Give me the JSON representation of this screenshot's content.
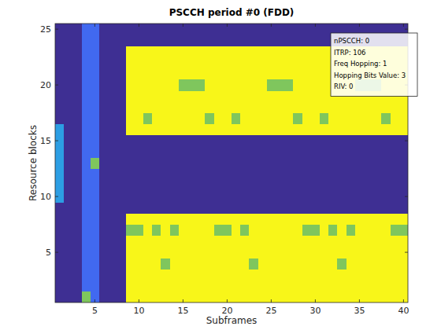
{
  "chart_data": {
    "type": "heatmap",
    "title": "PSCCH period #0 (FDD)",
    "x_label": "Subframes",
    "y_label": "Resource blocks",
    "annotations": [
      "nPSCCH: 0",
      "ITRP: 106",
      "Freq Hopping: 1",
      "Hopping Bits Value: 3",
      "RIV: 0"
    ],
    "xlim": [
      0.5,
      40.5
    ],
    "ylim": [
      0.5,
      25.5
    ],
    "xticks": [
      5,
      10,
      15,
      20,
      25,
      30,
      35,
      40
    ],
    "yticks": [
      5,
      10,
      15,
      20,
      25
    ],
    "x": [
      1,
      2,
      3,
      4,
      5,
      6,
      7,
      8,
      9,
      10,
      11,
      12,
      13,
      14,
      15,
      16,
      17,
      18,
      19,
      20,
      21,
      22,
      23,
      24,
      25,
      26,
      27,
      28,
      29,
      30,
      31,
      32,
      33,
      34,
      35,
      36,
      37,
      38,
      39,
      40
    ],
    "y": [
      1,
      2,
      3,
      4,
      5,
      6,
      7,
      8,
      9,
      10,
      11,
      12,
      13,
      14,
      15,
      16,
      17,
      18,
      19,
      20,
      21,
      22,
      23,
      24,
      25
    ],
    "colors": [
      "#3e2f93",
      "#4169f0",
      "#2c9ee4",
      "#7fc65d",
      "#f8f619"
    ],
    "cells": [
      [
        0,
        0,
        0,
        3,
        1,
        0,
        0,
        0,
        4,
        4,
        4,
        4,
        4,
        4,
        4,
        4,
        4,
        4,
        4,
        4,
        4,
        4,
        4,
        4,
        4,
        4,
        4,
        4,
        4,
        4,
        4,
        4,
        4,
        4,
        4,
        4,
        4,
        4,
        4,
        4
      ],
      [
        0,
        0,
        0,
        1,
        1,
        0,
        0,
        0,
        4,
        4,
        4,
        4,
        4,
        4,
        4,
        4,
        4,
        4,
        4,
        4,
        4,
        4,
        4,
        4,
        4,
        4,
        4,
        4,
        4,
        4,
        4,
        4,
        4,
        4,
        4,
        4,
        4,
        4,
        4,
        4
      ],
      [
        0,
        0,
        0,
        1,
        1,
        0,
        0,
        0,
        4,
        4,
        4,
        4,
        4,
        4,
        4,
        4,
        4,
        4,
        4,
        4,
        4,
        4,
        4,
        4,
        4,
        4,
        4,
        4,
        4,
        4,
        4,
        4,
        4,
        4,
        4,
        4,
        4,
        4,
        4,
        4
      ],
      [
        0,
        0,
        0,
        1,
        1,
        0,
        0,
        0,
        4,
        4,
        4,
        4,
        3,
        4,
        4,
        4,
        4,
        4,
        4,
        4,
        4,
        4,
        3,
        4,
        4,
        4,
        4,
        4,
        4,
        4,
        4,
        4,
        3,
        4,
        4,
        4,
        4,
        4,
        4,
        4
      ],
      [
        0,
        0,
        0,
        1,
        1,
        0,
        0,
        0,
        4,
        4,
        4,
        4,
        4,
        4,
        4,
        4,
        4,
        4,
        4,
        4,
        4,
        4,
        4,
        4,
        4,
        4,
        4,
        4,
        4,
        4,
        4,
        4,
        4,
        4,
        4,
        4,
        4,
        4,
        4,
        4
      ],
      [
        0,
        0,
        0,
        1,
        1,
        0,
        0,
        0,
        4,
        4,
        4,
        4,
        4,
        4,
        4,
        4,
        4,
        4,
        4,
        4,
        4,
        4,
        4,
        4,
        4,
        4,
        4,
        4,
        4,
        4,
        4,
        4,
        4,
        4,
        4,
        4,
        4,
        4,
        4,
        4
      ],
      [
        0,
        0,
        0,
        1,
        1,
        0,
        0,
        0,
        3,
        3,
        4,
        3,
        4,
        3,
        4,
        4,
        4,
        4,
        3,
        3,
        4,
        3,
        4,
        4,
        4,
        4,
        4,
        4,
        3,
        3,
        4,
        3,
        4,
        3,
        4,
        4,
        4,
        4,
        3,
        3
      ],
      [
        0,
        0,
        0,
        1,
        1,
        0,
        0,
        0,
        4,
        4,
        4,
        4,
        4,
        4,
        4,
        4,
        4,
        4,
        4,
        4,
        4,
        4,
        4,
        4,
        4,
        4,
        4,
        4,
        4,
        4,
        4,
        4,
        4,
        4,
        4,
        4,
        4,
        4,
        4,
        4
      ],
      [
        0,
        0,
        0,
        1,
        1,
        0,
        0,
        0,
        0,
        0,
        0,
        0,
        0,
        0,
        0,
        0,
        0,
        0,
        0,
        0,
        0,
        0,
        0,
        0,
        0,
        0,
        0,
        0,
        0,
        0,
        0,
        0,
        0,
        0,
        0,
        0,
        0,
        0,
        0,
        0
      ],
      [
        2,
        0,
        0,
        1,
        1,
        0,
        0,
        0,
        0,
        0,
        0,
        0,
        0,
        0,
        0,
        0,
        0,
        0,
        0,
        0,
        0,
        0,
        0,
        0,
        0,
        0,
        0,
        0,
        0,
        0,
        0,
        0,
        0,
        0,
        0,
        0,
        0,
        0,
        0,
        0
      ],
      [
        2,
        0,
        0,
        1,
        1,
        0,
        0,
        0,
        0,
        0,
        0,
        0,
        0,
        0,
        0,
        0,
        0,
        0,
        0,
        0,
        0,
        0,
        0,
        0,
        0,
        0,
        0,
        0,
        0,
        0,
        0,
        0,
        0,
        0,
        0,
        0,
        0,
        0,
        0,
        0
      ],
      [
        2,
        0,
        0,
        1,
        1,
        0,
        0,
        0,
        0,
        0,
        0,
        0,
        0,
        0,
        0,
        0,
        0,
        0,
        0,
        0,
        0,
        0,
        0,
        0,
        0,
        0,
        0,
        0,
        0,
        0,
        0,
        0,
        0,
        0,
        0,
        0,
        0,
        0,
        0,
        0
      ],
      [
        2,
        0,
        0,
        1,
        3,
        0,
        0,
        0,
        0,
        0,
        0,
        0,
        0,
        0,
        0,
        0,
        0,
        0,
        0,
        0,
        0,
        0,
        0,
        0,
        0,
        0,
        0,
        0,
        0,
        0,
        0,
        0,
        0,
        0,
        0,
        0,
        0,
        0,
        0,
        0
      ],
      [
        2,
        0,
        0,
        1,
        1,
        0,
        0,
        0,
        0,
        0,
        0,
        0,
        0,
        0,
        0,
        0,
        0,
        0,
        0,
        0,
        0,
        0,
        0,
        0,
        0,
        0,
        0,
        0,
        0,
        0,
        0,
        0,
        0,
        0,
        0,
        0,
        0,
        0,
        0,
        0
      ],
      [
        2,
        0,
        0,
        1,
        1,
        0,
        0,
        0,
        0,
        0,
        0,
        0,
        0,
        0,
        0,
        0,
        0,
        0,
        0,
        0,
        0,
        0,
        0,
        0,
        0,
        0,
        0,
        0,
        0,
        0,
        0,
        0,
        0,
        0,
        0,
        0,
        0,
        0,
        0,
        0
      ],
      [
        2,
        0,
        0,
        1,
        1,
        0,
        0,
        0,
        4,
        4,
        4,
        4,
        4,
        4,
        4,
        4,
        4,
        4,
        4,
        4,
        4,
        4,
        4,
        4,
        4,
        4,
        4,
        4,
        4,
        4,
        4,
        4,
        4,
        4,
        4,
        4,
        4,
        4,
        4,
        4
      ],
      [
        0,
        0,
        0,
        1,
        1,
        0,
        0,
        0,
        4,
        4,
        3,
        4,
        4,
        4,
        4,
        4,
        4,
        3,
        4,
        4,
        3,
        4,
        4,
        4,
        4,
        4,
        4,
        3,
        4,
        4,
        3,
        4,
        4,
        4,
        4,
        4,
        4,
        3,
        4,
        4
      ],
      [
        0,
        0,
        0,
        1,
        1,
        0,
        0,
        0,
        4,
        4,
        4,
        4,
        4,
        4,
        4,
        4,
        4,
        4,
        4,
        4,
        4,
        4,
        4,
        4,
        4,
        4,
        4,
        4,
        4,
        4,
        4,
        4,
        4,
        4,
        4,
        4,
        4,
        4,
        4,
        4
      ],
      [
        0,
        0,
        0,
        1,
        1,
        0,
        0,
        0,
        4,
        4,
        4,
        4,
        4,
        4,
        4,
        4,
        4,
        4,
        4,
        4,
        4,
        4,
        4,
        4,
        4,
        4,
        4,
        4,
        4,
        4,
        4,
        4,
        4,
        4,
        4,
        4,
        4,
        4,
        4,
        4
      ],
      [
        0,
        0,
        0,
        1,
        1,
        0,
        0,
        0,
        4,
        4,
        4,
        4,
        4,
        4,
        3,
        3,
        3,
        4,
        4,
        4,
        4,
        4,
        4,
        4,
        3,
        3,
        3,
        4,
        4,
        4,
        4,
        4,
        4,
        4,
        3,
        3,
        3,
        4,
        4,
        4
      ],
      [
        0,
        0,
        0,
        1,
        1,
        0,
        0,
        0,
        4,
        4,
        4,
        4,
        4,
        4,
        4,
        4,
        4,
        4,
        4,
        4,
        4,
        4,
        4,
        4,
        4,
        4,
        4,
        4,
        4,
        4,
        4,
        4,
        4,
        4,
        4,
        4,
        4,
        4,
        4,
        4
      ],
      [
        0,
        0,
        0,
        1,
        1,
        0,
        0,
        0,
        4,
        4,
        4,
        4,
        4,
        4,
        4,
        4,
        4,
        4,
        4,
        4,
        4,
        4,
        4,
        4,
        4,
        4,
        4,
        4,
        4,
        4,
        4,
        4,
        4,
        4,
        4,
        4,
        4,
        4,
        4,
        4
      ],
      [
        0,
        0,
        0,
        1,
        1,
        0,
        0,
        0,
        4,
        4,
        4,
        4,
        4,
        4,
        4,
        4,
        4,
        4,
        4,
        4,
        4,
        4,
        4,
        4,
        4,
        4,
        4,
        4,
        4,
        4,
        4,
        4,
        4,
        4,
        4,
        4,
        4,
        4,
        4,
        4
      ],
      [
        0,
        0,
        0,
        1,
        1,
        0,
        0,
        0,
        0,
        0,
        0,
        0,
        0,
        0,
        0,
        0,
        0,
        0,
        0,
        0,
        0,
        0,
        0,
        0,
        0,
        0,
        0,
        0,
        0,
        0,
        0,
        0,
        0,
        0,
        0,
        0,
        0,
        0,
        0,
        0
      ],
      [
        0,
        0,
        0,
        1,
        1,
        0,
        0,
        0,
        0,
        0,
        0,
        0,
        0,
        0,
        0,
        0,
        0,
        0,
        0,
        0,
        0,
        0,
        0,
        0,
        0,
        0,
        0,
        0,
        0,
        0,
        0,
        0,
        0,
        0,
        0,
        0,
        0,
        0,
        0,
        0
      ]
    ]
  }
}
